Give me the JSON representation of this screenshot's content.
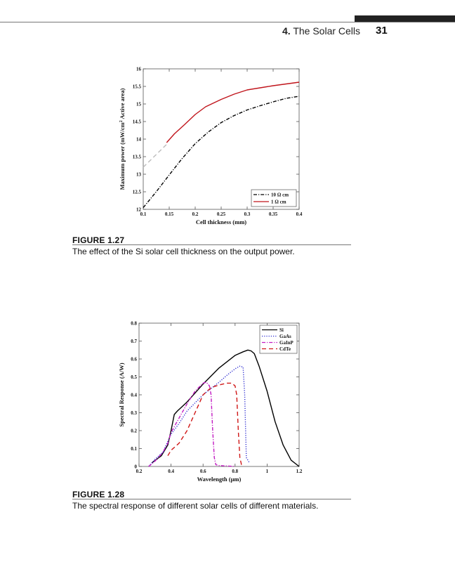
{
  "header": {
    "chapter_number": "4.",
    "chapter_title": "The Solar Cells",
    "page_number": "31"
  },
  "figures": [
    {
      "label": "FIGURE 1.27",
      "caption": "The effect of the Si solar cell thickness on the output power."
    },
    {
      "label": "FIGURE 1.28",
      "caption": "The spectral response of different solar cells of different materials."
    }
  ],
  "chart_data": [
    {
      "type": "line",
      "title": "",
      "xlabel": "Cell thickness (mm)",
      "ylabel": "Maximum power (mW/cm2 Active area)",
      "ylabel_parts": [
        "Maximum power (mW/cm",
        "2",
        " Active area)"
      ],
      "xlim": [
        0.1,
        0.4
      ],
      "ylim": [
        12,
        16
      ],
      "x_ticks": [
        0.1,
        0.15,
        0.2,
        0.25,
        0.3,
        0.35,
        0.4
      ],
      "x_tick_labels": [
        "0.1",
        "0.15",
        "0.2",
        "0.25",
        "0.3",
        "0.35",
        "0.4"
      ],
      "y_ticks": [
        12,
        12.5,
        13,
        13.5,
        14,
        14.5,
        15,
        15.5,
        16
      ],
      "y_tick_labels": [
        "12",
        "12.5",
        "13",
        "13.5",
        "14",
        "14.5",
        "15",
        "15.5",
        "16"
      ],
      "legend_position": "bottom-right",
      "series": [
        {
          "name": "10 Ω cm",
          "color": "#000000",
          "style": "dash-dot",
          "x": [
            0.1,
            0.125,
            0.15,
            0.175,
            0.2,
            0.225,
            0.25,
            0.275,
            0.3,
            0.325,
            0.35,
            0.375,
            0.4
          ],
          "y": [
            12.05,
            12.5,
            12.98,
            13.45,
            13.87,
            14.2,
            14.47,
            14.67,
            14.83,
            14.95,
            15.06,
            15.16,
            15.22
          ]
        },
        {
          "name": "1 Ω cm",
          "color": "#c0141b",
          "style": "solid",
          "x": [
            0.145,
            0.16,
            0.18,
            0.2,
            0.22,
            0.25,
            0.275,
            0.3,
            0.325,
            0.35,
            0.375,
            0.4
          ],
          "y": [
            13.9,
            14.15,
            14.42,
            14.7,
            14.92,
            15.13,
            15.28,
            15.4,
            15.46,
            15.52,
            15.57,
            15.62
          ]
        },
        {
          "name": "",
          "color": "#bdbdbd",
          "style": "dashed",
          "x": [
            0.1,
            0.145
          ],
          "y": [
            13.2,
            13.85
          ]
        }
      ]
    },
    {
      "type": "line",
      "title": "",
      "xlabel": "Wavelength (μm)",
      "ylabel": "Spectral Response (A/W)",
      "xlim": [
        0.2,
        1.2
      ],
      "ylim": [
        0,
        0.8
      ],
      "x_ticks": [
        0.2,
        0.4,
        0.6,
        0.8,
        1.0,
        1.2
      ],
      "x_tick_labels": [
        "0.2",
        "0.4",
        "0.6",
        "0.8",
        "1",
        "1.2"
      ],
      "y_ticks": [
        0,
        0.1,
        0.2,
        0.3,
        0.4,
        0.5,
        0.6,
        0.7,
        0.8
      ],
      "y_tick_labels": [
        "0",
        "0.1",
        "0.2",
        "0.3",
        "0.4",
        "0.5",
        "0.6",
        "0.7",
        "0.8"
      ],
      "legend_position": "top-right",
      "series": [
        {
          "name": "Si",
          "color": "#000000",
          "style": "solid",
          "x": [
            0.28,
            0.34,
            0.38,
            0.4,
            0.42,
            0.44,
            0.5,
            0.6,
            0.7,
            0.8,
            0.85,
            0.88,
            0.9,
            0.92,
            0.95,
            1.0,
            1.05,
            1.1,
            1.15,
            1.2
          ],
          "y": [
            0.02,
            0.06,
            0.12,
            0.2,
            0.29,
            0.31,
            0.36,
            0.46,
            0.55,
            0.62,
            0.64,
            0.65,
            0.645,
            0.63,
            0.56,
            0.42,
            0.25,
            0.12,
            0.035,
            0.0
          ]
        },
        {
          "name": "GaAs",
          "color": "#2a2ad0",
          "style": "dotted",
          "x": [
            0.26,
            0.3,
            0.35,
            0.38,
            0.4,
            0.45,
            0.5,
            0.6,
            0.7,
            0.75,
            0.8,
            0.83,
            0.85,
            0.86,
            0.87,
            0.89
          ],
          "y": [
            0.0,
            0.04,
            0.08,
            0.14,
            0.18,
            0.24,
            0.31,
            0.4,
            0.47,
            0.51,
            0.545,
            0.56,
            0.555,
            0.4,
            0.05,
            0.02
          ]
        },
        {
          "name": "GaInP",
          "color": "#c21bc2",
          "style": "dash-dot",
          "x": [
            0.26,
            0.3,
            0.35,
            0.38,
            0.4,
            0.45,
            0.5,
            0.55,
            0.6,
            0.62,
            0.64,
            0.65,
            0.66,
            0.67,
            0.68,
            0.7,
            0.8
          ],
          "y": [
            0.0,
            0.03,
            0.08,
            0.13,
            0.19,
            0.27,
            0.35,
            0.42,
            0.465,
            0.47,
            0.45,
            0.4,
            0.2,
            0.05,
            0.01,
            0.005,
            0.0
          ]
        },
        {
          "name": "CdTe",
          "color": "#d01818",
          "style": "dashed",
          "x": [
            0.38,
            0.4,
            0.45,
            0.5,
            0.55,
            0.6,
            0.65,
            0.7,
            0.75,
            0.78,
            0.8,
            0.81,
            0.82,
            0.83,
            0.84,
            0.85
          ],
          "y": [
            0.06,
            0.09,
            0.13,
            0.2,
            0.3,
            0.4,
            0.44,
            0.455,
            0.465,
            0.465,
            0.45,
            0.4,
            0.2,
            0.05,
            0.01,
            0.0
          ]
        }
      ]
    }
  ]
}
